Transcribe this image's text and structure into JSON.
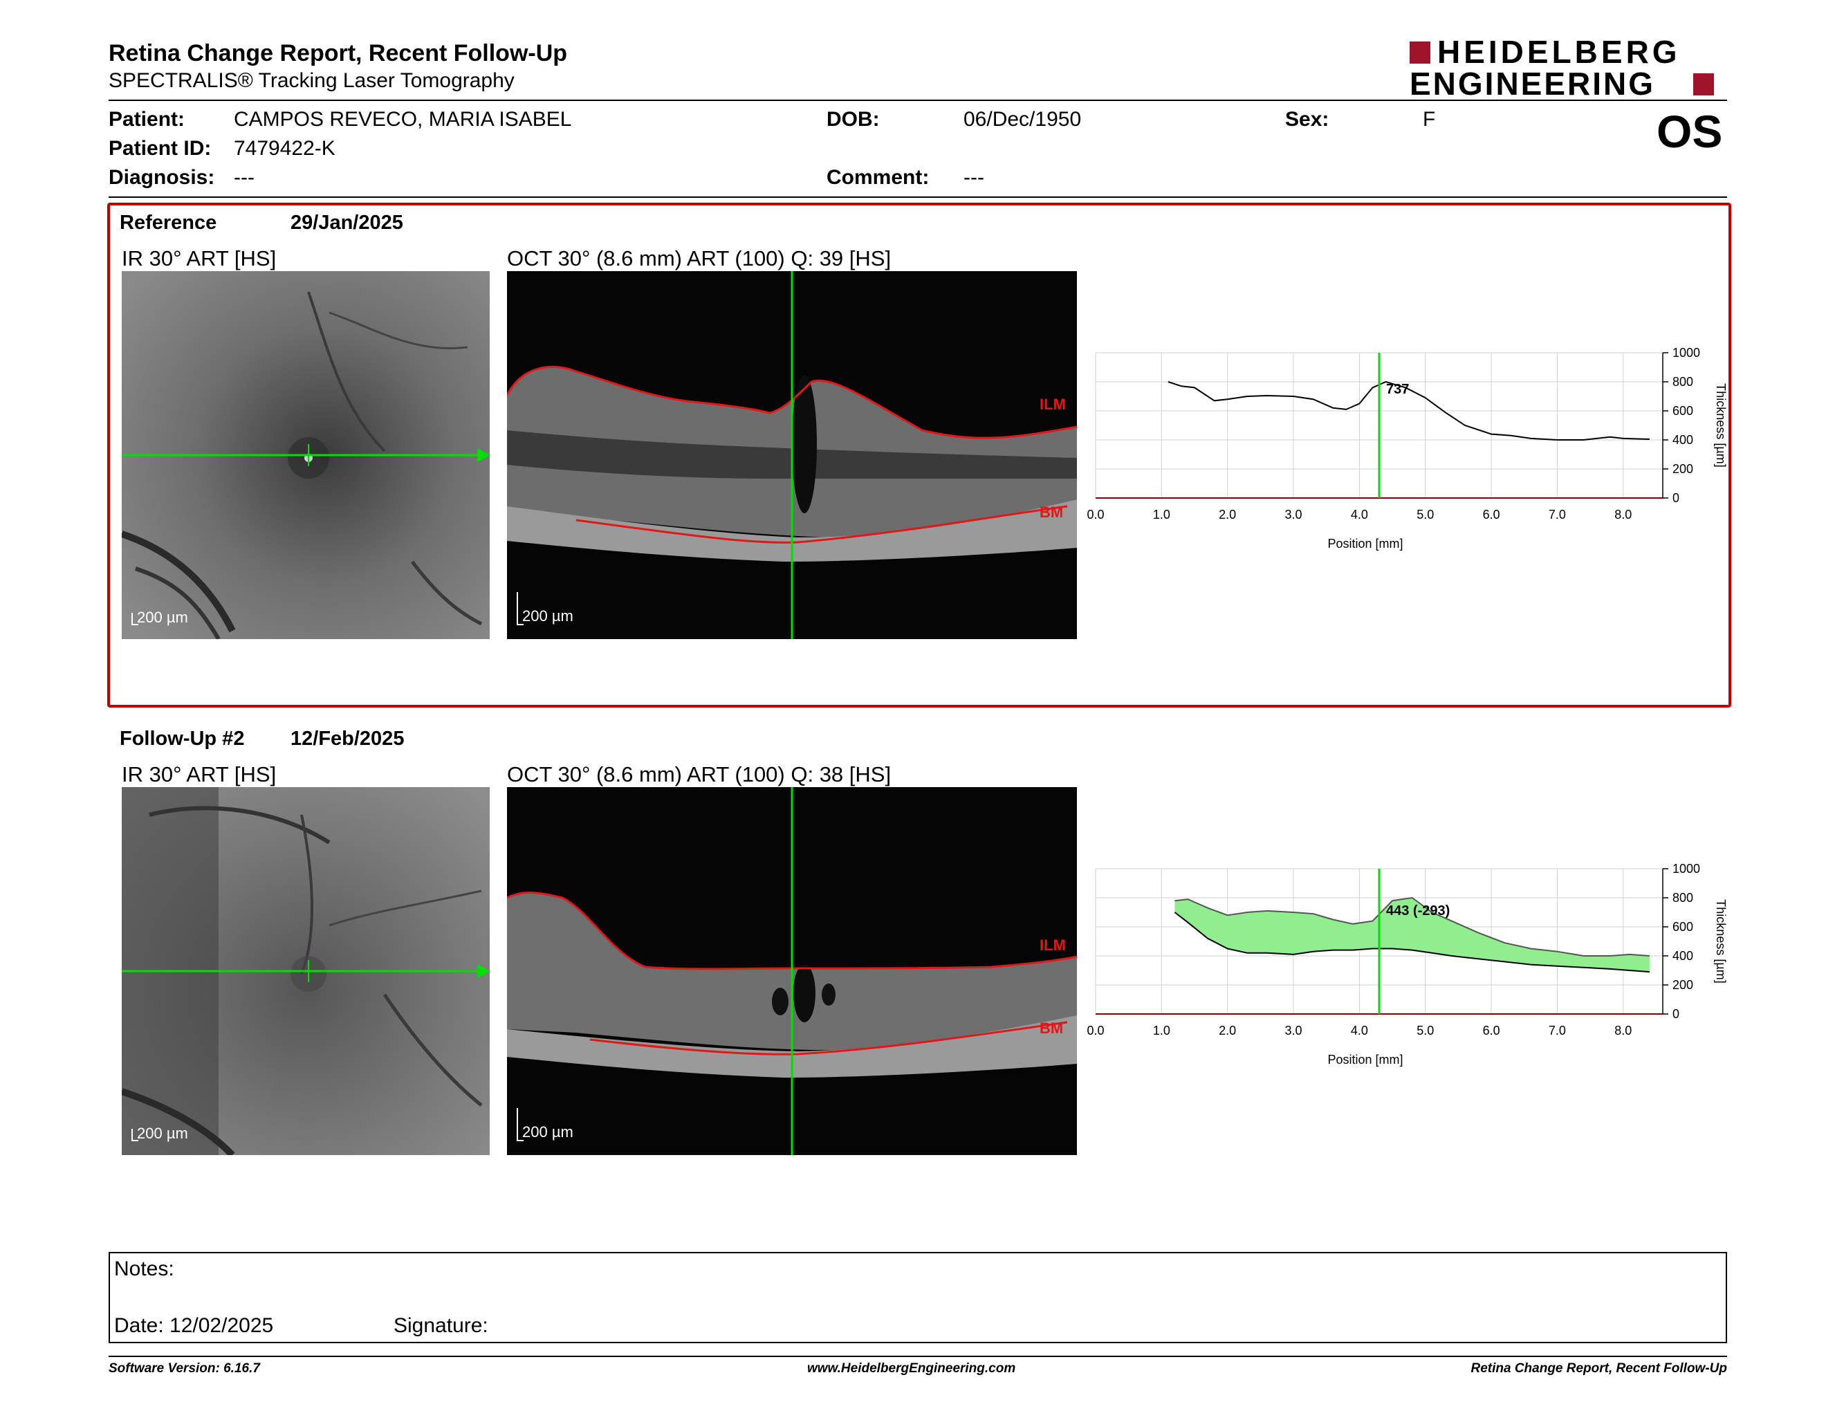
{
  "header": {
    "title": "Retina Change Report, Recent Follow-Up",
    "subtitle": "SPECTRALIS® Tracking Laser Tomography",
    "logo_line1": "HEIDELBERG",
    "logo_line2": "ENGINEERING",
    "eye": "OS"
  },
  "patient": {
    "patient_label": "Patient:",
    "patient_value": "CAMPOS REVECO, MARIA ISABEL",
    "id_label": "Patient ID:",
    "id_value": "7479422-K",
    "diagnosis_label": "Diagnosis:",
    "diagnosis_value": "---",
    "dob_label": "DOB:",
    "dob_value": "06/Dec/1950",
    "comment_label": "Comment:",
    "comment_value": "---",
    "sex_label": "Sex:",
    "sex_value": "F"
  },
  "reference": {
    "label": "Reference",
    "date": "29/Jan/2025",
    "ir_caption": "IR 30° ART [HS]",
    "oct_caption": "OCT 30° (8.6 mm) ART (100) Q: 39 [HS]",
    "scale_ir": "200 µm",
    "scale_oct": "200 µm",
    "ilm": "ILM",
    "bm": "BM"
  },
  "followup": {
    "label": "Follow-Up #2",
    "date": "12/Feb/2025",
    "ir_caption": "IR 30° ART [HS]",
    "oct_caption": "OCT 30° (8.6 mm) ART (100) Q: 38 [HS]",
    "scale_ir": "200 µm",
    "scale_oct": "200 µm",
    "ilm": "ILM",
    "bm": "BM"
  },
  "notes": {
    "notes_label": "Notes:",
    "date_label": "Date: 12/02/2025",
    "signature_label": "Signature:"
  },
  "footer": {
    "left": "Software Version: 6.16.7",
    "center": "www.HeidelbergEngineering.com",
    "right": "Retina Change Report, Recent Follow-Up"
  },
  "colors": {
    "brand": "#a0142b",
    "reference_frame": "#c00000",
    "cursor": "#00e000",
    "change_fill": "#90ee90"
  },
  "chart_data": [
    {
      "type": "line",
      "xlabel": "Position [mm]",
      "ylabel": "Thickness [µm]",
      "xlim": [
        0,
        8.6
      ],
      "ylim": [
        0,
        1000
      ],
      "x_ticks": [
        "0.0",
        "1.0",
        "2.0",
        "3.0",
        "4.0",
        "5.0",
        "6.0",
        "7.0",
        "8.0"
      ],
      "y_ticks": [
        "0",
        "200",
        "400",
        "600",
        "800",
        "1000"
      ],
      "grid": true,
      "cursor_x": 4.3,
      "annotation": "737",
      "series": [
        {
          "x": [
            1.1,
            1.3,
            1.5,
            1.8,
            2.0,
            2.3,
            2.6,
            3.0,
            3.3,
            3.6,
            3.8,
            4.0,
            4.2,
            4.4,
            4.7,
            5.0,
            5.3,
            5.6,
            6.0,
            6.3,
            6.6,
            7.0,
            7.4,
            7.8,
            8.0,
            8.4
          ],
          "values": [
            800,
            770,
            760,
            670,
            680,
            700,
            705,
            700,
            680,
            620,
            610,
            650,
            760,
            800,
            760,
            690,
            590,
            500,
            440,
            430,
            410,
            400,
            400,
            420,
            410,
            405
          ]
        }
      ]
    },
    {
      "type": "area",
      "xlabel": "Position [mm]",
      "ylabel": "Thickness [µm]",
      "xlim": [
        0,
        8.6
      ],
      "ylim": [
        0,
        1000
      ],
      "x_ticks": [
        "0.0",
        "1.0",
        "2.0",
        "3.0",
        "4.0",
        "5.0",
        "6.0",
        "7.0",
        "8.0"
      ],
      "y_ticks": [
        "0",
        "200",
        "400",
        "600",
        "800",
        "1000"
      ],
      "grid": true,
      "cursor_x": 4.3,
      "annotation": "443 (-293)",
      "series": [
        {
          "x": [
            1.2,
            1.4,
            1.7,
            2.0,
            2.3,
            2.6,
            3.0,
            3.3,
            3.6,
            3.9,
            4.2,
            4.5,
            4.8,
            5.1,
            5.4,
            5.8,
            6.2,
            6.6,
            7.0,
            7.4,
            7.8,
            8.1,
            8.4
          ],
          "values": [
            780,
            790,
            730,
            680,
            700,
            710,
            700,
            690,
            650,
            620,
            640,
            780,
            800,
            700,
            640,
            560,
            490,
            450,
            430,
            400,
            400,
            410,
            400
          ]
        },
        {
          "x": [
            1.2,
            1.4,
            1.7,
            2.0,
            2.3,
            2.6,
            3.0,
            3.3,
            3.6,
            3.9,
            4.2,
            4.5,
            4.8,
            5.1,
            5.4,
            5.8,
            6.2,
            6.6,
            7.0,
            7.4,
            7.8,
            8.1,
            8.4
          ],
          "values": [
            700,
            630,
            520,
            450,
            420,
            420,
            410,
            430,
            440,
            440,
            450,
            450,
            440,
            420,
            400,
            380,
            360,
            340,
            330,
            320,
            310,
            300,
            290
          ]
        }
      ]
    }
  ]
}
